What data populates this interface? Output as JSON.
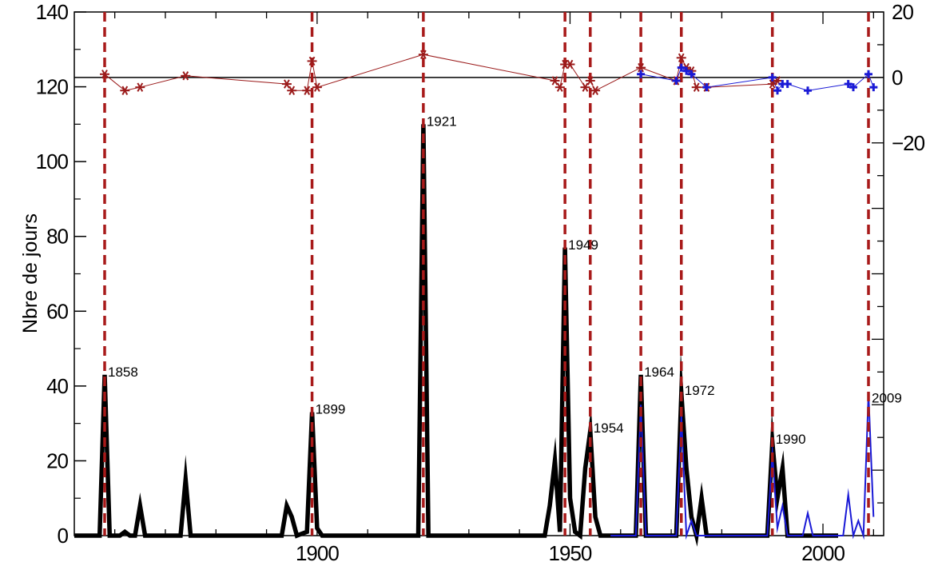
{
  "chart_data": {
    "type": "line",
    "ylabel": "Nbre de jours",
    "xlim": [
      1852,
      2012
    ],
    "ylim_left": [
      0,
      140
    ],
    "ylim_right": [
      -140,
      20
    ],
    "x_ticks": [
      1900,
      1950,
      2000
    ],
    "y_ticks_left": [
      0,
      20,
      40,
      60,
      80,
      100,
      120,
      140
    ],
    "y_ticks_right_labels": [
      "20",
      "0",
      "−20"
    ],
    "y_ticks_right_values": [
      20,
      0,
      -20
    ],
    "zero_line_right": 0,
    "grid": false,
    "vlines": [
      1858,
      1899,
      1921,
      1949,
      1954,
      1964,
      1972,
      1990,
      2009
    ],
    "annotations": [
      {
        "year": 1858,
        "label": "1858",
        "value": 43
      },
      {
        "year": 1899,
        "label": "1899",
        "value": 33
      },
      {
        "year": 1921,
        "label": "1921",
        "value": 110
      },
      {
        "year": 1949,
        "label": "1949",
        "value": 77
      },
      {
        "year": 1954,
        "label": "1954",
        "value": 28
      },
      {
        "year": 1964,
        "label": "1964",
        "value": 43
      },
      {
        "year": 1972,
        "label": "1972",
        "value": 38
      },
      {
        "year": 1990,
        "label": "1990",
        "value": 25
      },
      {
        "year": 2009,
        "label": "2009",
        "value": 36
      }
    ],
    "series": [
      {
        "axis": "left",
        "color": "#000000",
        "style": "thick-line",
        "points": [
          [
            1852,
            0
          ],
          [
            1857,
            0
          ],
          [
            1858,
            43
          ],
          [
            1859,
            0
          ],
          [
            1861,
            0
          ],
          [
            1862,
            1
          ],
          [
            1863,
            0
          ],
          [
            1864,
            0
          ],
          [
            1865,
            8
          ],
          [
            1866,
            0
          ],
          [
            1873,
            0
          ],
          [
            1874,
            15
          ],
          [
            1875,
            0
          ],
          [
            1893,
            0
          ],
          [
            1894,
            8
          ],
          [
            1895,
            5
          ],
          [
            1896,
            0
          ],
          [
            1898,
            1
          ],
          [
            1899,
            33
          ],
          [
            1900,
            2
          ],
          [
            1901,
            0
          ],
          [
            1920,
            0
          ],
          [
            1921,
            110
          ],
          [
            1922,
            0
          ],
          [
            1945,
            0
          ],
          [
            1946,
            8
          ],
          [
            1947,
            20
          ],
          [
            1948,
            1
          ],
          [
            1949,
            77
          ],
          [
            1950,
            10
          ],
          [
            1951,
            1
          ],
          [
            1952,
            0
          ],
          [
            1953,
            18
          ],
          [
            1954,
            28
          ],
          [
            1955,
            5
          ],
          [
            1956,
            0
          ],
          [
            1963,
            0
          ],
          [
            1964,
            43
          ],
          [
            1965,
            0
          ],
          [
            1971,
            0
          ],
          [
            1972,
            38
          ],
          [
            1973,
            18
          ],
          [
            1974,
            5
          ],
          [
            1975,
            0
          ],
          [
            1976,
            10
          ],
          [
            1977,
            0
          ],
          [
            1989,
            0
          ],
          [
            1990,
            25
          ],
          [
            1991,
            10
          ],
          [
            1992,
            18
          ],
          [
            1993,
            0
          ],
          [
            2003,
            0
          ]
        ]
      },
      {
        "axis": "left",
        "color": "#1a1ad6",
        "style": "thin-line",
        "points": [
          [
            1958,
            0
          ],
          [
            1963,
            0
          ],
          [
            1964,
            35
          ],
          [
            1965,
            0
          ],
          [
            1971,
            0
          ],
          [
            1972,
            32
          ],
          [
            1973,
            0
          ],
          [
            1974,
            4
          ],
          [
            1975,
            0
          ],
          [
            1989,
            0
          ],
          [
            1990,
            22
          ],
          [
            1991,
            2
          ],
          [
            1992,
            8
          ],
          [
            1993,
            0
          ],
          [
            1996,
            0
          ],
          [
            1997,
            6
          ],
          [
            1998,
            0
          ],
          [
            2003,
            0
          ],
          [
            2004,
            0
          ],
          [
            2005,
            11
          ],
          [
            2006,
            0
          ],
          [
            2007,
            4
          ],
          [
            2008,
            0
          ],
          [
            2009,
            38
          ],
          [
            2010,
            5
          ]
        ]
      },
      {
        "axis": "right",
        "color": "#9b1b1b",
        "marker": "asterisk",
        "points": [
          [
            1858,
            1
          ],
          [
            1862,
            -4
          ],
          [
            1865,
            -3
          ],
          [
            1874,
            0.5
          ],
          [
            1894,
            -2
          ],
          [
            1895,
            -4
          ],
          [
            1898,
            -4
          ],
          [
            1899,
            5
          ],
          [
            1900,
            -3
          ],
          [
            1921,
            7
          ],
          [
            1947,
            -1
          ],
          [
            1948,
            -3
          ],
          [
            1949,
            4
          ],
          [
            1950,
            4
          ],
          [
            1953,
            -3
          ],
          [
            1954,
            -1
          ],
          [
            1955,
            -4
          ],
          [
            1964,
            3
          ],
          [
            1971,
            -1
          ],
          [
            1972,
            6
          ],
          [
            1973,
            3
          ],
          [
            1974,
            2
          ],
          [
            1975,
            -3
          ],
          [
            1977,
            -3
          ],
          [
            1990,
            -2
          ],
          [
            1991,
            -1
          ]
        ]
      },
      {
        "axis": "right",
        "color": "#1a1ad6",
        "marker": "plus",
        "points": [
          [
            1964,
            1
          ],
          [
            1971,
            -1
          ],
          [
            1972,
            3
          ],
          [
            1973,
            2
          ],
          [
            1974,
            1
          ],
          [
            1977,
            -3
          ],
          [
            1990,
            0
          ],
          [
            1991,
            -4
          ],
          [
            1992,
            -2
          ],
          [
            1993,
            -2
          ],
          [
            1997,
            -4
          ],
          [
            2005,
            -2
          ],
          [
            2006,
            -3
          ],
          [
            2009,
            1
          ],
          [
            2010,
            -3
          ]
        ]
      }
    ]
  }
}
